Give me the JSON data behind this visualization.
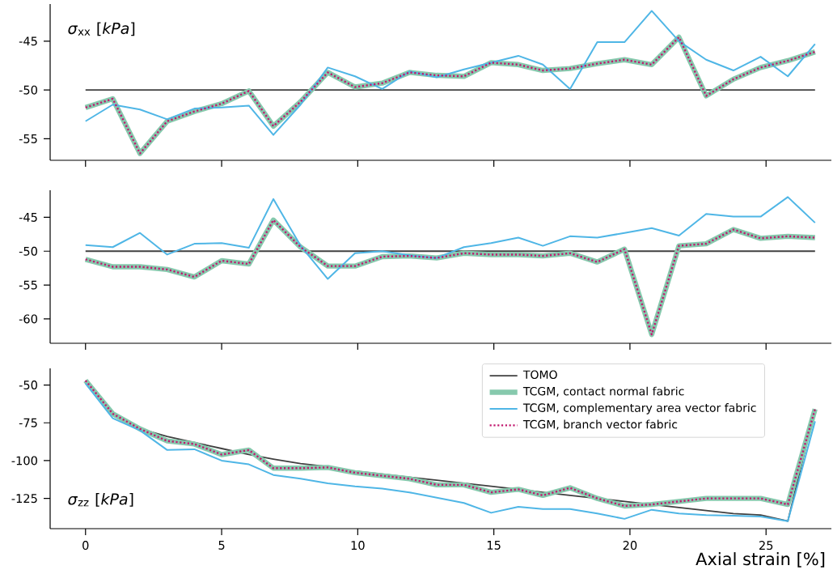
{
  "chart_data": [
    {
      "type": "line",
      "ylabel": "*σ*$_{xx}$ [*kPa*]",
      "x": [
        0,
        1.0,
        2.0,
        3.0,
        4.0,
        5.0,
        6.0,
        6.9,
        7.9,
        8.9,
        9.9,
        10.9,
        11.9,
        12.9,
        13.9,
        14.9,
        15.9,
        16.8,
        17.8,
        18.8,
        19.8,
        20.8,
        21.8,
        22.8,
        23.8,
        24.8,
        25.8,
        26.8
      ],
      "xlim": [
        -1.3,
        27.4
      ],
      "xticks": [
        0,
        5,
        10,
        15,
        20,
        25
      ],
      "ylim": [
        -57.2,
        -41.2
      ],
      "yticks": [
        -55,
        -50,
        -45
      ],
      "tick_labels": "y",
      "series": [
        {
          "color": "#404040",
          "line_style": "solid",
          "values": [
            -50,
            -50,
            -50,
            -50,
            -50,
            -50,
            -50,
            -50,
            -50,
            -50,
            -50,
            -50,
            -50,
            -50,
            -50,
            -50,
            -50,
            -50,
            -50,
            -50,
            -50,
            -50,
            -50,
            -50,
            -50,
            -50,
            -50,
            -50
          ]
        },
        {
          "color": "#86c9ad",
          "line_style": "solid",
          "values": [
            -51.8,
            -50.9,
            -56.5,
            -53.2,
            -52.2,
            -51.4,
            -50.1,
            -53.7,
            -51.2,
            -48.2,
            -49.7,
            -49.3,
            -48.2,
            -48.5,
            -48.6,
            -47.2,
            -47.4,
            -48.0,
            -47.8,
            -47.3,
            -46.9,
            -47.4,
            -44.6,
            -50.6,
            -48.9,
            -47.7,
            -47.0,
            -46.1
          ]
        },
        {
          "color": "#4fb6e6",
          "line_style": "solid",
          "values": [
            -53.2,
            -51.5,
            -52.0,
            -53.0,
            -51.9,
            -51.8,
            -51.6,
            -54.6,
            -51.5,
            -47.7,
            -48.6,
            -49.9,
            -48.1,
            -48.7,
            -47.9,
            -47.2,
            -46.5,
            -47.4,
            -49.9,
            -45.1,
            -45.1,
            -41.9,
            -45.0,
            -46.9,
            -48.0,
            -46.6,
            -48.6,
            -45.3
          ]
        },
        {
          "color": "#c2186f",
          "line_style": "dotted",
          "values": [
            -51.8,
            -50.9,
            -56.5,
            -53.2,
            -52.2,
            -51.4,
            -50.1,
            -53.7,
            -51.2,
            -48.2,
            -49.7,
            -49.3,
            -48.2,
            -48.5,
            -48.6,
            -47.2,
            -47.4,
            -48.0,
            -47.8,
            -47.3,
            -46.9,
            -47.4,
            -44.6,
            -50.6,
            -48.9,
            -47.7,
            -47.0,
            -46.1
          ]
        }
      ]
    },
    {
      "type": "line",
      "x": [
        0,
        1.0,
        2.0,
        3.0,
        4.0,
        5.0,
        6.0,
        6.9,
        7.9,
        8.9,
        9.9,
        10.9,
        11.9,
        12.9,
        13.9,
        14.9,
        15.9,
        16.8,
        17.8,
        18.8,
        19.8,
        20.8,
        21.8,
        22.8,
        23.8,
        24.8,
        25.8,
        26.8
      ],
      "xlim": [
        -1.3,
        27.4
      ],
      "xticks": [
        0,
        5,
        10,
        15,
        20,
        25
      ],
      "ylim": [
        -63.6,
        -41.0
      ],
      "yticks": [
        -60,
        -55,
        -50,
        -45
      ],
      "tick_labels": "y",
      "series": [
        {
          "color": "#404040",
          "line_style": "solid",
          "values": [
            -50,
            -50,
            -50,
            -50,
            -50,
            -50,
            -50,
            -50,
            -50,
            -50,
            -50,
            -50,
            -50,
            -50,
            -50,
            -50,
            -50,
            -50,
            -50,
            -50,
            -50,
            -50,
            -50,
            -50,
            -50,
            -50,
            -50,
            -50
          ]
        },
        {
          "color": "#86c9ad",
          "line_style": "solid",
          "values": [
            -51.2,
            -52.3,
            -52.3,
            -52.7,
            -53.8,
            -51.4,
            -51.9,
            -45.4,
            -49.4,
            -52.2,
            -52.2,
            -50.8,
            -50.7,
            -51.0,
            -50.3,
            -50.5,
            -50.5,
            -50.7,
            -50.3,
            -51.6,
            -49.7,
            -62.3,
            -49.2,
            -48.9,
            -46.8,
            -48.1,
            -47.8,
            -48.0
          ]
        },
        {
          "color": "#4fb6e6",
          "line_style": "solid",
          "values": [
            -49.1,
            -49.4,
            -47.3,
            -50.5,
            -48.9,
            -48.8,
            -49.5,
            -42.3,
            -49.2,
            -54.1,
            -50.3,
            -50.0,
            -50.6,
            -51.0,
            -49.4,
            -48.8,
            -48.0,
            -49.2,
            -47.8,
            -48.0,
            -47.3,
            -46.6,
            -47.7,
            -44.5,
            -44.9,
            -44.9,
            -42.0,
            -45.8
          ]
        },
        {
          "color": "#c2186f",
          "line_style": "dotted",
          "values": [
            -51.2,
            -52.3,
            -52.3,
            -52.7,
            -53.8,
            -51.4,
            -51.9,
            -45.4,
            -49.4,
            -52.2,
            -52.2,
            -50.8,
            -50.7,
            -51.0,
            -50.3,
            -50.5,
            -50.5,
            -50.7,
            -50.3,
            -51.6,
            -49.7,
            -62.3,
            -49.2,
            -48.9,
            -46.8,
            -48.1,
            -47.8,
            -48.0
          ]
        }
      ]
    },
    {
      "type": "line",
      "ylabel": "*σ*$_{zz}$ [*kPa*]",
      "xlabel": "Axial strain [%]",
      "x": [
        0,
        1.0,
        2.0,
        3.0,
        4.0,
        5.0,
        6.0,
        6.9,
        7.9,
        8.9,
        9.9,
        10.9,
        11.9,
        12.9,
        13.9,
        14.9,
        15.9,
        16.8,
        17.8,
        18.8,
        19.8,
        20.8,
        21.8,
        22.8,
        23.8,
        24.8,
        25.8,
        26.8
      ],
      "xlim": [
        -1.3,
        27.4
      ],
      "xticks": [
        0,
        5,
        10,
        15,
        20,
        25
      ],
      "ylim": [
        -145,
        -39
      ],
      "yticks": [
        -125,
        -100,
        -75,
        -50
      ],
      "legend": "top right",
      "series": [
        {
          "name": "TOMO",
          "color": "#404040",
          "line_style": "solid",
          "values": [
            -48,
            -70,
            -79,
            -84,
            -88,
            -92,
            -96,
            -99,
            -102,
            -104,
            -107,
            -109,
            -111,
            -113,
            -115,
            -117,
            -119,
            -121,
            -123,
            -125,
            -127,
            -129,
            -131,
            -133,
            -135,
            -136,
            -140,
            -66
          ]
        },
        {
          "name": "TCGM, contact normal fabric",
          "color": "#86c9ad",
          "line_style": "solid",
          "values": [
            -47,
            -69,
            -79,
            -87,
            -89,
            -96,
            -93,
            -105,
            -105,
            -104.5,
            -108,
            -110,
            -112,
            -116,
            -116,
            -121,
            -119,
            -123,
            -118,
            -125,
            -130,
            -129,
            -127,
            -125,
            -125,
            -125,
            -129,
            -66
          ]
        },
        {
          "name": "TCGM, complementary area vector fabric",
          "color": "#4fb6e6",
          "line_style": "solid",
          "values": [
            -49,
            -72,
            -80,
            -93,
            -92.5,
            -100,
            -102.5,
            -109.5,
            -112,
            -115,
            -117,
            -118.5,
            -121,
            -124.5,
            -128,
            -134.5,
            -130.5,
            -132,
            -132,
            -135,
            -138.5,
            -132.5,
            -135,
            -136,
            -136.5,
            -137,
            -140,
            -74
          ]
        },
        {
          "name": "TCGM, branch vector fabric",
          "color": "#c2186f",
          "line_style": "dotted",
          "values": [
            -47,
            -69,
            -79,
            -87,
            -89,
            -96,
            -93,
            -105,
            -105,
            -104.5,
            -108,
            -110,
            -112,
            -116,
            -116,
            -121,
            -119,
            -123,
            -118,
            -125,
            -130,
            -129,
            -127,
            -125,
            -125,
            -125,
            -129,
            -66
          ]
        }
      ]
    }
  ]
}
